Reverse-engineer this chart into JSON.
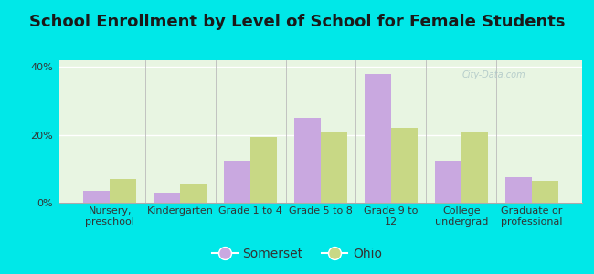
{
  "title": "School Enrollment by Level of School for Female Students",
  "categories": [
    "Nursery,\npreschool",
    "Kindergarten",
    "Grade 1 to 4",
    "Grade 5 to 8",
    "Grade 9 to\n12",
    "College\nundergrad",
    "Graduate or\nprofessional"
  ],
  "somerset": [
    3.5,
    3.0,
    12.5,
    25.0,
    38.0,
    12.5,
    7.5
  ],
  "ohio": [
    7.0,
    5.5,
    19.5,
    21.0,
    22.0,
    21.0,
    6.5
  ],
  "somerset_color": "#c9a8e0",
  "ohio_color": "#c8d885",
  "background_color": "#00e8e8",
  "plot_bg": "#e8f5e2",
  "ylim": [
    0,
    42
  ],
  "yticks": [
    0,
    20,
    40
  ],
  "ytick_labels": [
    "0%",
    "20%",
    "40%"
  ],
  "bar_width": 0.38,
  "title_fontsize": 13,
  "tick_fontsize": 8,
  "legend_fontsize": 10
}
